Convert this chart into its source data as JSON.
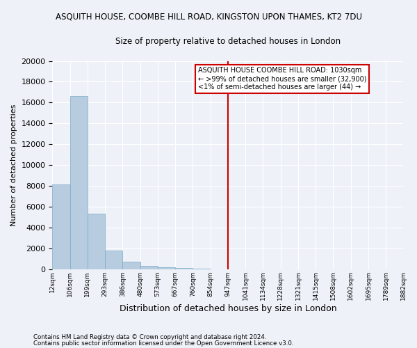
{
  "title": "ASQUITH HOUSE, COOMBE HILL ROAD, KINGSTON UPON THAMES, KT2 7DU",
  "subtitle": "Size of property relative to detached houses in London",
  "xlabel": "Distribution of detached houses by size in London",
  "ylabel": "Number of detached properties",
  "bar_values": [
    8100,
    16600,
    5300,
    1750,
    700,
    300,
    175,
    100,
    50,
    0,
    0,
    0,
    0,
    0,
    0,
    0,
    0,
    0,
    0,
    0
  ],
  "bar_labels": [
    "12sqm",
    "106sqm",
    "199sqm",
    "293sqm",
    "386sqm",
    "480sqm",
    "573sqm",
    "667sqm",
    "760sqm",
    "854sqm",
    "947sqm",
    "1041sqm",
    "1134sqm",
    "1228sqm",
    "1321sqm",
    "1415sqm",
    "1508sqm",
    "1602sqm",
    "1695sqm",
    "1789sqm",
    "1882sqm"
  ],
  "bar_color": "#b8ccdf",
  "bar_edge_color": "#7aaac8",
  "vline_color": "#cc0000",
  "ylim": [
    0,
    20000
  ],
  "yticks": [
    0,
    2000,
    4000,
    6000,
    8000,
    10000,
    12000,
    14000,
    16000,
    18000,
    20000
  ],
  "annotation_title": "ASQUITH HOUSE COOMBE HILL ROAD: 1030sqm",
  "annotation_line1": "← >99% of detached houses are smaller (32,900)",
  "annotation_line2": "<1% of semi-detached houses are larger (44) →",
  "annotation_box_color": "#cc0000",
  "footnote1": "Contains HM Land Registry data © Crown copyright and database right 2024.",
  "footnote2": "Contains public sector information licensed under the Open Government Licence v3.0.",
  "background_color": "#eef2f8",
  "grid_color": "#ffffff",
  "n_bars": 20,
  "n_labels": 21
}
